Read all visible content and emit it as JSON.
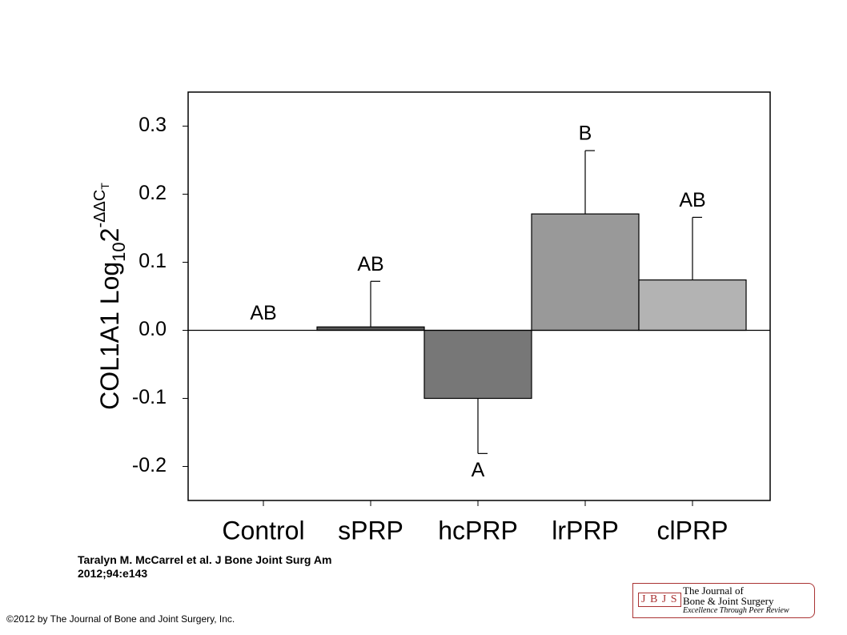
{
  "chart_data": {
    "type": "bar",
    "ylabel": {
      "parts": [
        "COL1A1 Log",
        "10",
        "2",
        "-ΔΔC",
        "T"
      ]
    },
    "categories": [
      "Control",
      "sPRP",
      "hcPRP",
      "lrPRP",
      "clPRP"
    ],
    "series": [
      {
        "name": null,
        "values": [
          0,
          0.005,
          -0.1,
          0.171,
          0.074
        ],
        "errors": [
          null,
          0.067,
          0.081,
          0.093,
          0.092
        ],
        "colors": [
          "#555555",
          "#555555",
          "#777777",
          "#999999",
          "#b3b3b3"
        ]
      }
    ],
    "annotations": [
      "AB",
      "AB",
      "A",
      "B",
      "AB"
    ],
    "ylim": [
      -0.25,
      0.35
    ],
    "yticks": [
      {
        "value": -0.2,
        "label": "-0.2"
      },
      {
        "value": -0.1,
        "label": "-0.1"
      },
      {
        "value": 0,
        "label": "0.0"
      },
      0.1,
      0.2,
      0.3
    ]
  },
  "citation": {
    "line1": "Taralyn M. McCarrel et al. J Bone Joint Surg Am",
    "line2": "2012;94:e143"
  },
  "copyright": "©2012 by The Journal of Bone and Joint Surgery, Inc.",
  "logo": {
    "abbr": "J B J S",
    "line1": "The Journal of",
    "line2": "Bone & Joint Surgery",
    "line3": "Excellence Through Peer Review"
  }
}
